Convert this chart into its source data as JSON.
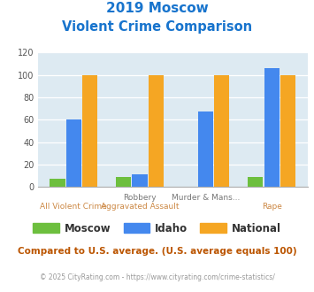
{
  "title_line1": "2019 Moscow",
  "title_line2": "Violent Crime Comparison",
  "title_color": "#1874cd",
  "cat_labels_top": [
    "",
    "Robbery",
    "Murder & Mans...",
    ""
  ],
  "cat_labels_bot": [
    "All Violent Crime",
    "Aggravated Assault",
    "",
    "Rape"
  ],
  "moscow_values": [
    7,
    9,
    0,
    9
  ],
  "idaho_values": [
    60,
    11,
    67,
    106
  ],
  "national_values": [
    100,
    100,
    100,
    100
  ],
  "moscow_color": "#6dbf3e",
  "idaho_color": "#4488ee",
  "national_color": "#f5a623",
  "bg_color": "#ddeaf2",
  "ylim": [
    0,
    120
  ],
  "yticks": [
    0,
    20,
    40,
    60,
    80,
    100,
    120
  ],
  "legend_labels": [
    "Moscow",
    "Idaho",
    "National"
  ],
  "footer1": "Compared to U.S. average. (U.S. average equals 100)",
  "footer2": "© 2025 CityRating.com - https://www.cityrating.com/crime-statistics/",
  "footer1_color": "#bb5500",
  "footer2_color": "#999999",
  "footer2_link_color": "#3366cc"
}
